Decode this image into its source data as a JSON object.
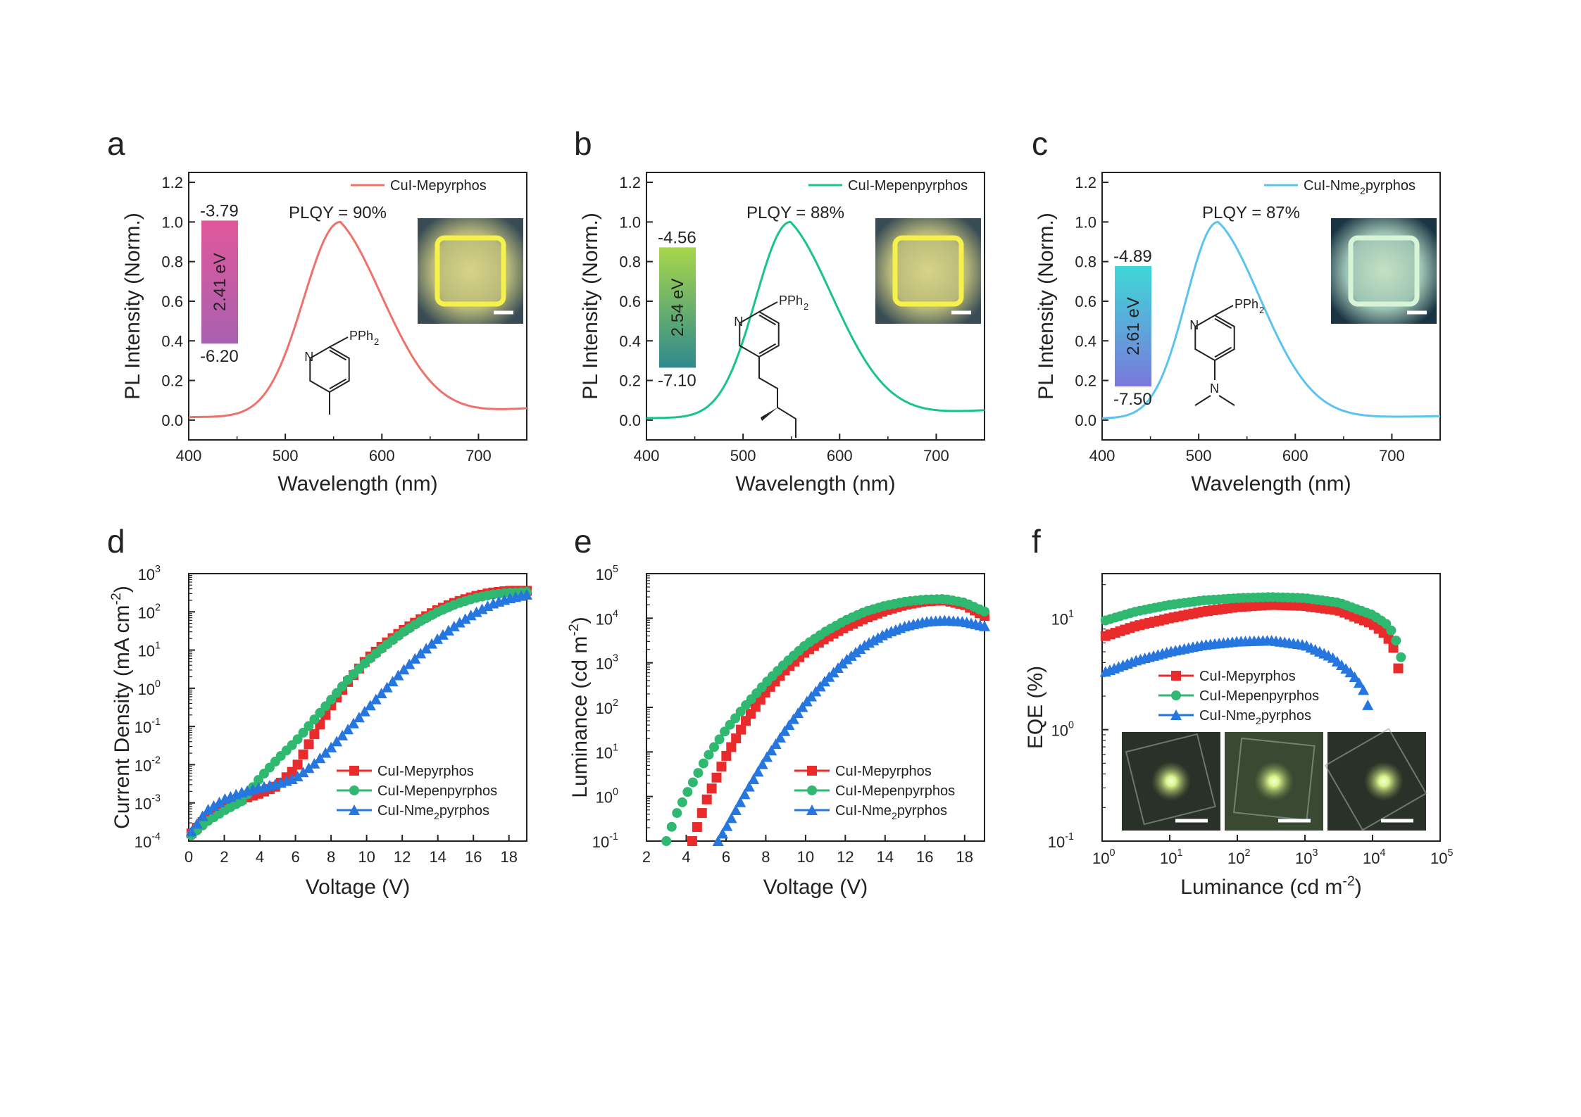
{
  "figure": {
    "panels": [
      "a",
      "b",
      "c",
      "d",
      "e",
      "f"
    ],
    "scale_bar": "scale-bar"
  },
  "chart_data": [
    {
      "panel": "a",
      "type": "line",
      "xlabel": "Wavelength (nm)",
      "ylabel": "PL Intensity (Norm.)",
      "xlim": [
        400,
        750
      ],
      "ylim": [
        -0.1,
        1.25
      ],
      "xticks": [
        400,
        500,
        600,
        700
      ],
      "yticks": [
        0.0,
        0.2,
        0.4,
        0.6,
        0.8,
        1.0,
        1.2
      ],
      "series": [
        {
          "name": "CuI-Mepyrphos",
          "color": "#f0706a",
          "peak": 557,
          "sigma_left": 38,
          "sigma_right": 62,
          "baseline": 0.015,
          "end_value": 0.06
        }
      ],
      "annotations": {
        "plqy": "PLQY = 90%",
        "lumo": "-3.79",
        "homo": "-6.20",
        "gap": "2.41 eV",
        "gap_colors": [
          "#a960b0",
          "#e0589a"
        ],
        "ligand_substituent": "PPh2",
        "ring_atom": "N",
        "inset_photo": "yellow emitting square film"
      }
    },
    {
      "panel": "b",
      "type": "line",
      "xlabel": "Wavelength (nm)",
      "ylabel": "PL Intensity (Norm.)",
      "xlim": [
        400,
        750
      ],
      "ylim": [
        -0.1,
        1.25
      ],
      "xticks": [
        400,
        500,
        600,
        700
      ],
      "yticks": [
        0.0,
        0.2,
        0.4,
        0.6,
        0.8,
        1.0,
        1.2
      ],
      "series": [
        {
          "name": "CuI-Mepenpyrphos",
          "color": "#19c48a",
          "peak": 549,
          "sigma_left": 36,
          "sigma_right": 62,
          "baseline": 0.01,
          "end_value": 0.05
        }
      ],
      "annotations": {
        "plqy": "PLQY = 88%",
        "lumo": "-4.56",
        "homo": "-7.10",
        "gap": "2.54 eV",
        "gap_colors": [
          "#2e8a8e",
          "#a8d64a"
        ],
        "ligand_substituent": "PPh2",
        "ring_atom": "N",
        "inset_photo": "yellow emitting square film"
      }
    },
    {
      "panel": "c",
      "type": "line",
      "xlabel": "Wavelength (nm)",
      "ylabel": "PL Intensity (Norm.)",
      "xlim": [
        400,
        750
      ],
      "ylim": [
        -0.1,
        1.25
      ],
      "xticks": [
        400,
        500,
        600,
        700
      ],
      "yticks": [
        0.0,
        0.2,
        0.4,
        0.6,
        0.8,
        1.0,
        1.2
      ],
      "series": [
        {
          "name": "CuI-Nme2pyrphos",
          "color": "#5ac3f0",
          "peak": 520,
          "sigma_left": 33,
          "sigma_right": 58,
          "baseline": 0.008,
          "end_value": 0.02
        }
      ],
      "annotations": {
        "plqy": "PLQY = 87%",
        "lumo": "-4.89",
        "homo": "-7.50",
        "gap": "2.61 eV",
        "gap_colors": [
          "#7a78dc",
          "#3ed8d8"
        ],
        "ligand_substituent": "PPh2",
        "ring_atom": "N",
        "inset_photo": "green-white emitting square film"
      }
    },
    {
      "panel": "d",
      "type": "scatter",
      "xlabel": "Voltage (V)",
      "ylabel": "Current Density (mA cm-2)",
      "xlim": [
        0,
        19
      ],
      "ylim_log10": [
        -4,
        3
      ],
      "xticks": [
        0,
        2,
        4,
        6,
        8,
        10,
        12,
        14,
        16,
        18
      ],
      "yticks_log10": [
        -4,
        -3,
        -2,
        -1,
        0,
        1,
        2,
        3
      ],
      "legend": "bottom-right",
      "series": [
        {
          "name": "CuI-Mepyrphos",
          "color": "#ea2b2b",
          "marker": "square",
          "x": [
            0.15,
            1,
            2,
            3,
            4,
            5,
            6,
            7,
            8,
            9,
            10,
            11,
            12,
            13,
            14,
            15,
            16,
            17,
            18,
            19
          ],
          "log10y": [
            -3.8,
            -3.4,
            -3.1,
            -2.9,
            -2.75,
            -2.55,
            -2.1,
            -1.25,
            -0.45,
            0.2,
            0.75,
            1.15,
            1.5,
            1.8,
            2.05,
            2.25,
            2.4,
            2.5,
            2.55,
            2.55
          ]
        },
        {
          "name": "CuI-Mepenpyrphos",
          "color": "#2eb870",
          "marker": "circle",
          "x": [
            0.15,
            1,
            2,
            3,
            4,
            5,
            6,
            7,
            8,
            9,
            10,
            11,
            12,
            13,
            14,
            15,
            16,
            17,
            18,
            19
          ],
          "log10y": [
            -3.85,
            -3.5,
            -3.2,
            -2.95,
            -2.35,
            -1.85,
            -1.4,
            -0.85,
            -0.3,
            0.25,
            0.7,
            1.1,
            1.45,
            1.75,
            2.0,
            2.2,
            2.35,
            2.45,
            2.5,
            2.52
          ]
        },
        {
          "name": "CuI-Nme2pyrphos",
          "color": "#2676e0",
          "marker": "triangle",
          "x": [
            0.15,
            1,
            2,
            3,
            4,
            5,
            6,
            7,
            8,
            9,
            10,
            11,
            12,
            13,
            14,
            15,
            16,
            17,
            18,
            19
          ],
          "log10y": [
            -3.75,
            -3.2,
            -2.9,
            -2.72,
            -2.6,
            -2.5,
            -2.35,
            -2.0,
            -1.55,
            -1.05,
            -0.55,
            -0.05,
            0.45,
            0.9,
            1.3,
            1.65,
            1.95,
            2.2,
            2.35,
            2.45
          ]
        }
      ]
    },
    {
      "panel": "e",
      "type": "scatter",
      "xlabel": "Voltage (V)",
      "ylabel": "Luminance (cd m-2)",
      "xlim": [
        2,
        19
      ],
      "ylim_log10": [
        -1,
        5
      ],
      "xticks": [
        2,
        4,
        6,
        8,
        10,
        12,
        14,
        16,
        18
      ],
      "yticks_log10": [
        -1,
        0,
        1,
        2,
        3,
        4,
        5
      ],
      "legend": "bottom-right",
      "series": [
        {
          "name": "CuI-Mepyrphos",
          "color": "#ea2b2b",
          "marker": "square",
          "x": [
            4.3,
            5,
            6,
            7,
            8,
            9,
            10,
            11,
            12,
            13,
            14,
            15,
            16,
            17,
            18,
            19
          ],
          "log10y": [
            -1.0,
            -0.1,
            0.9,
            1.7,
            2.35,
            2.85,
            3.25,
            3.55,
            3.8,
            4.0,
            4.17,
            4.3,
            4.38,
            4.4,
            4.3,
            4.05
          ]
        },
        {
          "name": "CuI-Mepenpyrphos",
          "color": "#2eb870",
          "marker": "circle",
          "x": [
            3.0,
            3.5,
            4,
            5,
            6,
            7,
            8,
            9,
            10,
            11,
            12,
            13,
            14,
            15,
            16,
            17,
            18,
            19
          ],
          "log10y": [
            -1.0,
            -0.4,
            0.05,
            0.85,
            1.5,
            2.05,
            2.55,
            3.0,
            3.4,
            3.7,
            3.95,
            4.15,
            4.28,
            4.37,
            4.42,
            4.43,
            4.35,
            4.15
          ]
        },
        {
          "name": "CuI-Nme2pyrphos",
          "color": "#2676e0",
          "marker": "triangle",
          "x": [
            5.6,
            6,
            7,
            8,
            9,
            10,
            11,
            12,
            13,
            14,
            15,
            16,
            17,
            18,
            19
          ],
          "log10y": [
            -1.0,
            -0.7,
            0.1,
            0.85,
            1.5,
            2.1,
            2.6,
            3.05,
            3.4,
            3.65,
            3.82,
            3.92,
            3.95,
            3.92,
            3.82
          ]
        }
      ]
    },
    {
      "panel": "f",
      "type": "scatter",
      "xlabel": "Luminance (cd m-2)",
      "ylabel": "EQE (%)",
      "xlim_log10": [
        0,
        5
      ],
      "ylim_log10": [
        -1,
        1.4
      ],
      "xticks_log10": [
        0,
        1,
        2,
        3,
        4,
        5
      ],
      "yticks_log10": [
        -1,
        0,
        1
      ],
      "legend": "center-left",
      "series": [
        {
          "name": "CuI-Mepyrphos",
          "color": "#ea2b2b",
          "marker": "square",
          "log10x": [
            0.05,
            0.5,
            1.0,
            1.5,
            2.0,
            2.5,
            3.0,
            3.5,
            4.0,
            4.2,
            4.3,
            4.35,
            4.38
          ],
          "log10y": [
            0.84,
            0.93,
            1.0,
            1.06,
            1.1,
            1.12,
            1.11,
            1.07,
            0.95,
            0.85,
            0.75,
            0.65,
            0.55
          ]
        },
        {
          "name": "CuI-Mepenpyrphos",
          "color": "#2eb870",
          "marker": "circle",
          "x_note": "log scale",
          "log10x": [
            0.05,
            0.5,
            1.0,
            1.5,
            2.0,
            2.5,
            3.0,
            3.5,
            4.0,
            4.2,
            4.3,
            4.38,
            4.42
          ],
          "log10y": [
            0.98,
            1.06,
            1.12,
            1.16,
            1.18,
            1.19,
            1.18,
            1.14,
            1.03,
            0.95,
            0.87,
            0.75,
            0.65
          ]
        },
        {
          "name": "CuI-Nme2pyrphos",
          "color": "#2676e0",
          "marker": "triangle",
          "log10x": [
            0.05,
            0.5,
            1.0,
            1.5,
            2.0,
            2.5,
            3.0,
            3.4,
            3.7,
            3.85,
            3.9,
            3.93
          ],
          "log10y": [
            0.52,
            0.62,
            0.7,
            0.76,
            0.79,
            0.8,
            0.76,
            0.65,
            0.5,
            0.38,
            0.3,
            0.22
          ]
        }
      ]
    }
  ]
}
